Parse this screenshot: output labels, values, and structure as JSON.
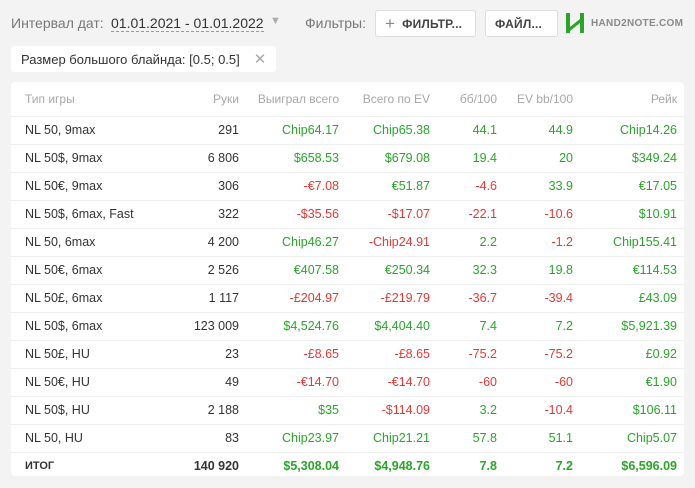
{
  "header": {
    "date_label": "Интервал дат:",
    "date_value": "01.01.2021 - 01.01.2022",
    "filters_label": "Фильтры:",
    "filter_button": "ФИЛЬТР...",
    "file_button": "ФАЙЛ...",
    "logo_text": "HAND2NOTE.COM",
    "logo_color": "#2aa52a"
  },
  "active_filter": {
    "label": "Размер большого блайнда: [0.5; 0.5]"
  },
  "table": {
    "columns": [
      "Тип игры",
      "Руки",
      "Выиграл всего",
      "Всего по EV",
      "бб/100",
      "EV bb/100",
      "Рейк"
    ],
    "rows": [
      {
        "game": "NL 50, 9max",
        "hands": "291",
        "won": "Chip64.17",
        "won_s": "pos",
        "ev": "Chip65.38",
        "ev_s": "pos",
        "bb": "44.1",
        "bb_s": "pos",
        "evbb": "44.9",
        "evbb_s": "pos",
        "rake": "Chip14.26",
        "rake_s": "pos"
      },
      {
        "game": "NL 50$, 9max",
        "hands": "6 806",
        "won": "$658.53",
        "won_s": "pos",
        "ev": "$679.08",
        "ev_s": "pos",
        "bb": "19.4",
        "bb_s": "pos",
        "evbb": "20",
        "evbb_s": "pos",
        "rake": "$349.24",
        "rake_s": "pos"
      },
      {
        "game": "NL 50€, 9max",
        "hands": "306",
        "won": "-€7.08",
        "won_s": "neg",
        "ev": "€51.87",
        "ev_s": "pos",
        "bb": "-4.6",
        "bb_s": "neg",
        "evbb": "33.9",
        "evbb_s": "pos",
        "rake": "€17.05",
        "rake_s": "pos"
      },
      {
        "game": "NL 50$, 6max, Fast",
        "hands": "322",
        "won": "-$35.56",
        "won_s": "neg",
        "ev": "-$17.07",
        "ev_s": "neg",
        "bb": "-22.1",
        "bb_s": "neg",
        "evbb": "-10.6",
        "evbb_s": "neg",
        "rake": "$10.91",
        "rake_s": "pos"
      },
      {
        "game": "NL 50, 6max",
        "hands": "4 200",
        "won": "Chip46.27",
        "won_s": "pos",
        "ev": "-Chip24.91",
        "ev_s": "neg",
        "bb": "2.2",
        "bb_s": "pos",
        "evbb": "-1.2",
        "evbb_s": "neg",
        "rake": "Chip155.41",
        "rake_s": "pos"
      },
      {
        "game": "NL 50€, 6max",
        "hands": "2 526",
        "won": "€407.58",
        "won_s": "pos",
        "ev": "€250.34",
        "ev_s": "pos",
        "bb": "32.3",
        "bb_s": "pos",
        "evbb": "19.8",
        "evbb_s": "pos",
        "rake": "€114.53",
        "rake_s": "pos"
      },
      {
        "game": "NL 50£, 6max",
        "hands": "1 117",
        "won": "-£204.97",
        "won_s": "neg",
        "ev": "-£219.79",
        "ev_s": "neg",
        "bb": "-36.7",
        "bb_s": "neg",
        "evbb": "-39.4",
        "evbb_s": "neg",
        "rake": "£43.09",
        "rake_s": "pos"
      },
      {
        "game": "NL 50$, 6max",
        "hands": "123 009",
        "won": "$4,524.76",
        "won_s": "pos",
        "ev": "$4,404.40",
        "ev_s": "pos",
        "bb": "7.4",
        "bb_s": "pos",
        "evbb": "7.2",
        "evbb_s": "pos",
        "rake": "$5,921.39",
        "rake_s": "pos"
      },
      {
        "game": "NL 50£, HU",
        "hands": "23",
        "won": "-£8.65",
        "won_s": "neg",
        "ev": "-£8.65",
        "ev_s": "neg",
        "bb": "-75.2",
        "bb_s": "neg",
        "evbb": "-75.2",
        "evbb_s": "neg",
        "rake": "£0.92",
        "rake_s": "pos"
      },
      {
        "game": "NL 50€, HU",
        "hands": "49",
        "won": "-€14.70",
        "won_s": "neg",
        "ev": "-€14.70",
        "ev_s": "neg",
        "bb": "-60",
        "bb_s": "neg",
        "evbb": "-60",
        "evbb_s": "neg",
        "rake": "€1.90",
        "rake_s": "pos"
      },
      {
        "game": "NL 50$, HU",
        "hands": "2 188",
        "won": "$35",
        "won_s": "pos",
        "ev": "-$114.09",
        "ev_s": "neg",
        "bb": "3.2",
        "bb_s": "pos",
        "evbb": "-10.4",
        "evbb_s": "neg",
        "rake": "$106.11",
        "rake_s": "pos"
      },
      {
        "game": "NL 50, HU",
        "hands": "83",
        "won": "Chip23.97",
        "won_s": "pos",
        "ev": "Chip21.21",
        "ev_s": "pos",
        "bb": "57.8",
        "bb_s": "pos",
        "evbb": "51.1",
        "evbb_s": "pos",
        "rake": "Chip5.07",
        "rake_s": "pos"
      }
    ],
    "total": {
      "game": "ИТОГ",
      "hands": "140 920",
      "won": "$5,308.04",
      "ev": "$4,948.76",
      "bb": "7.8",
      "evbb": "7.2",
      "rake": "$6,596.09"
    }
  },
  "colors": {
    "positive": "#2aa52a",
    "negative": "#e53935"
  }
}
